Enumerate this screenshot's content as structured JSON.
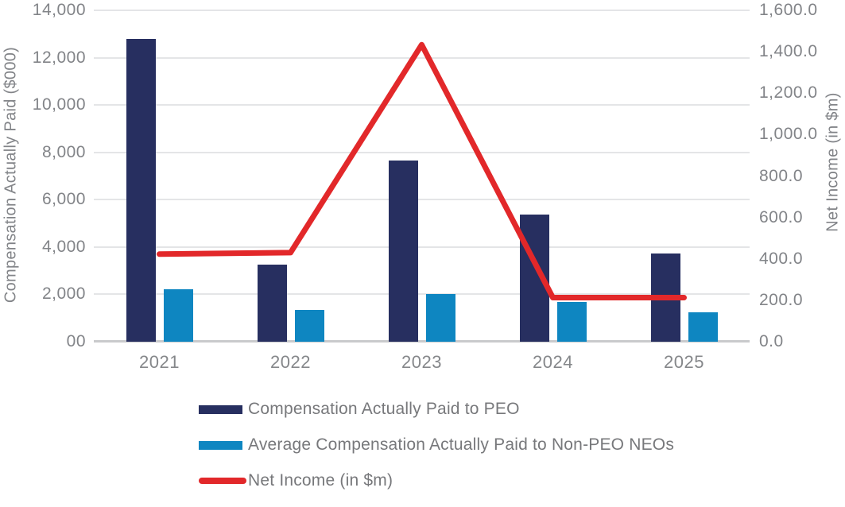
{
  "chart_data": {
    "type": "bar",
    "subtype": "combo-bar-line-dual-axis",
    "categories": [
      "2021",
      "2022",
      "2023",
      "2024",
      "2025"
    ],
    "series": [
      {
        "name": "Compensation Actually Paid to PEO",
        "type": "bar",
        "axis": "left",
        "color": "#272F60",
        "values": [
          12800,
          3270,
          7660,
          5380,
          3720
        ]
      },
      {
        "name": "Average Compensation Actually Paid to Non-PEO NEOs",
        "type": "bar",
        "axis": "left",
        "color": "#0E86C1",
        "values": [
          2210,
          1340,
          2000,
          1680,
          1230
        ]
      },
      {
        "name": "Net Income (in $m)",
        "type": "line",
        "axis": "right",
        "color": "#E2282A",
        "values": [
          423,
          430,
          1434,
          213,
          213
        ]
      }
    ],
    "left_axis": {
      "title": "Compensation Actually Paid ($000)",
      "min": 0,
      "max": 14000,
      "tick_values": [
        14000,
        12000,
        10000,
        8000,
        6000,
        4000,
        2000,
        0
      ],
      "tick_labels": [
        "14,000",
        "12,000",
        "10,000",
        "8,000",
        "6,000",
        "4,000",
        "2,000",
        "00"
      ]
    },
    "right_axis": {
      "title": "Net Income (in $m)",
      "min": 0,
      "max": 1600,
      "tick_values": [
        1600,
        1400,
        1200,
        1000,
        800,
        600,
        400,
        200,
        0
      ],
      "tick_labels": [
        "1,600.0",
        "1,400.0",
        "1,200.0",
        "1,000.0",
        "800.0",
        "600.0",
        "400.0",
        "200.0",
        "0.0"
      ]
    },
    "grid": "horizontal",
    "legend_position": "bottom-left"
  },
  "colors": {
    "gridline": "#E4E5E7",
    "axis_baseline": "#C9CACC",
    "text": "#808285"
  }
}
